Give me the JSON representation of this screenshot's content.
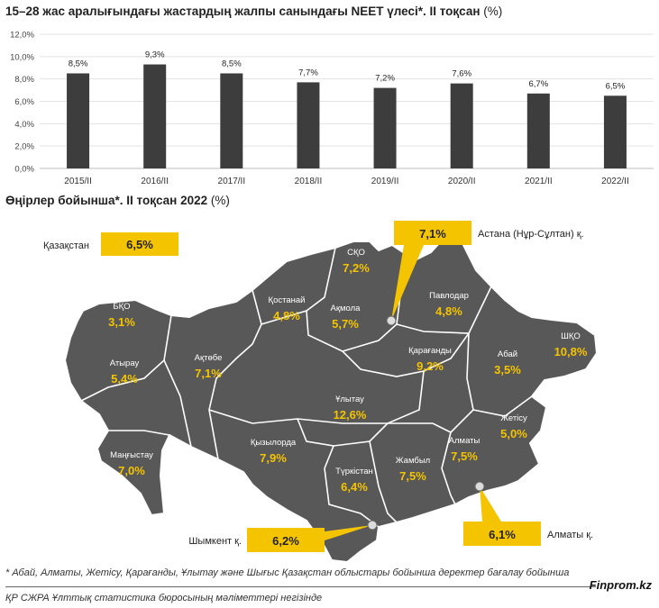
{
  "chart_data": [
    {
      "type": "bar",
      "title": "15–28 жас аралығындағы жастардың жалпы санындағы NEET үлесі*. II тоқсан",
      "unit": "(%)",
      "categories": [
        "2015/II",
        "2016/II",
        "2017/II",
        "2018/II",
        "2019/II",
        "2020/II",
        "2021/II",
        "2022/II"
      ],
      "values": [
        8.5,
        9.3,
        8.5,
        7.7,
        7.2,
        7.6,
        6.7,
        6.5
      ],
      "data_labels": [
        "8,5%",
        "9,3%",
        "8,5%",
        "7,7%",
        "7,2%",
        "7,6%",
        "6,7%",
        "6,5%"
      ],
      "y_ticks": [
        "0,0%",
        "2,0%",
        "4,0%",
        "6,0%",
        "8,0%",
        "10,0%",
        "12,0%"
      ],
      "ylim": [
        0,
        12
      ],
      "grid": true,
      "bar_color": "#3d3d3d"
    },
    {
      "type": "map",
      "title": "Өңірлер бойынша*. II тоқсан 2022",
      "unit": "(%)",
      "regions": [
        {
          "name": "СҚО",
          "value": "7,2%"
        },
        {
          "name": "Қостанай",
          "value": "4,8%"
        },
        {
          "name": "Ақмола",
          "value": "5,7%"
        },
        {
          "name": "Павлодар",
          "value": "4,8%"
        },
        {
          "name": "БҚО",
          "value": "3,1%"
        },
        {
          "name": "Атырау",
          "value": "5,4%"
        },
        {
          "name": "Ақтөбе",
          "value": "7,1%"
        },
        {
          "name": "Қарағанды",
          "value": "9,2%"
        },
        {
          "name": "Абай",
          "value": "3,5%"
        },
        {
          "name": "ШҚО",
          "value": "10,8%"
        },
        {
          "name": "Ұлытау",
          "value": "12,6%"
        },
        {
          "name": "Жетісу",
          "value": "5,0%"
        },
        {
          "name": "Маңғыстау",
          "value": "7,0%"
        },
        {
          "name": "Қызылорда",
          "value": "7,9%"
        },
        {
          "name": "Түркістан",
          "value": "6,4%"
        },
        {
          "name": "Жамбыл",
          "value": "7,5%"
        },
        {
          "name": "Алматы",
          "value": "7,5%"
        }
      ],
      "callouts": {
        "kazakhstan": {
          "label": "Қазақстан",
          "value": "6,5%"
        },
        "astana": {
          "label": "Астана (Нұр-Сұлтан) қ.",
          "value": "7,1%"
        },
        "shymkent": {
          "label": "Шымкент қ.",
          "value": "6,2%"
        },
        "almaty_city": {
          "label": "Алматы қ.",
          "value": "6,1%"
        }
      },
      "map_color": "#585858",
      "value_color": "#f5c400",
      "callout_color": "#f5c400"
    }
  ],
  "footnote": "* Абай, Алматы, Жетісу, Қарағанды, Ұлытау және Шығыс Қазақстан облыстары бойынша деректер бағалау бойынша",
  "source": "ҚР СЖРА Ұлттық статистика бюросының мәліметтері негізінде",
  "brand": "Finprom.kz"
}
